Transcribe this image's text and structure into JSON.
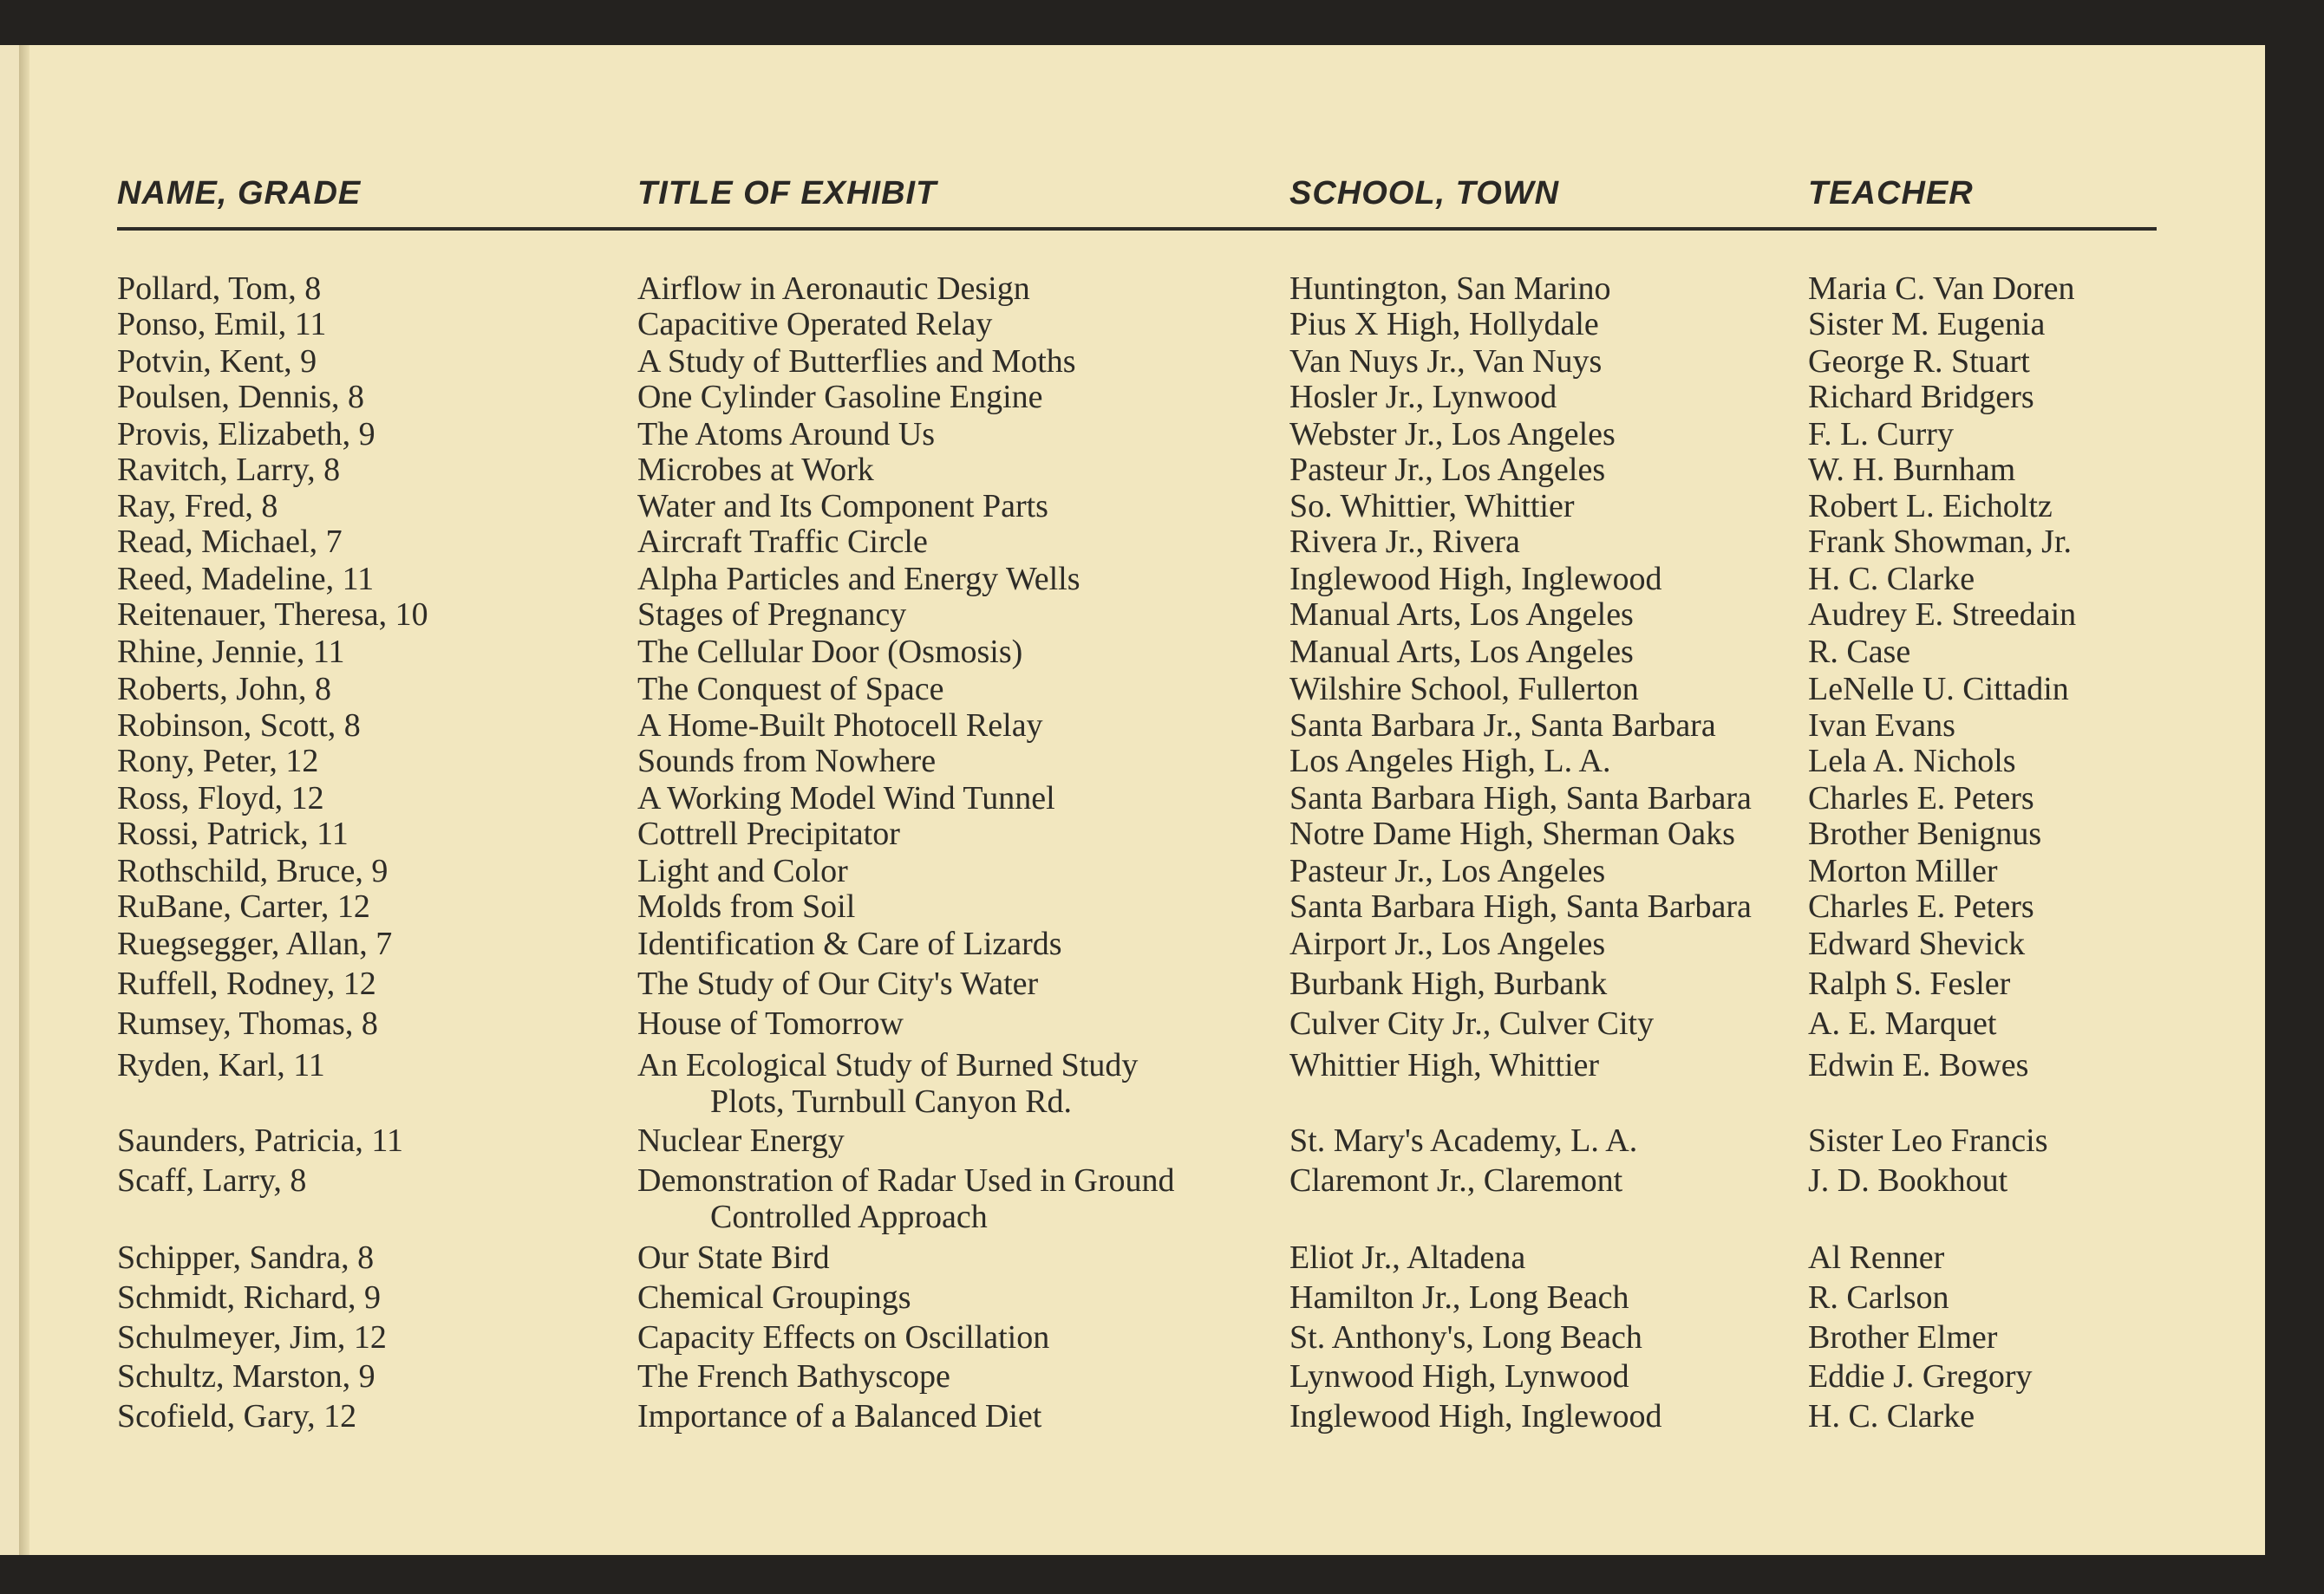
{
  "headers": {
    "name": "NAME, GRADE",
    "title": "TITLE OF EXHIBIT",
    "school": "SCHOOL, TOWN",
    "teacher": "TEACHER"
  },
  "rows": [
    {
      "name": "Pollard, Tom, 8",
      "title": "Airflow in Aeronautic Design",
      "school": "Huntington, San Marino",
      "teacher": "Maria C. Van Doren"
    },
    {
      "name": "Ponso, Emil, 11",
      "title": "Capacitive Operated Relay",
      "school": "Pius X High, Hollydale",
      "teacher": "Sister M. Eugenia"
    },
    {
      "name": "Potvin, Kent, 9",
      "title": "A Study of Butterflies and Moths",
      "school": "Van Nuys Jr., Van Nuys",
      "teacher": "George R. Stuart"
    },
    {
      "name": "Poulsen, Dennis, 8",
      "title": "One Cylinder Gasoline Engine",
      "school": "Hosler Jr., Lynwood",
      "teacher": "Richard Bridgers"
    },
    {
      "name": "Provis, Elizabeth, 9",
      "title": "The Atoms Around Us",
      "school": "Webster Jr., Los Angeles",
      "teacher": "F. L. Curry"
    },
    {
      "name": "Ravitch, Larry, 8",
      "title": "Microbes at Work",
      "school": "Pasteur Jr., Los Angeles",
      "teacher": "W. H. Burnham"
    },
    {
      "name": "Ray, Fred, 8",
      "title": "Water and Its Component Parts",
      "school": "So. Whittier, Whittier",
      "teacher": "Robert L. Eicholtz"
    },
    {
      "name": "Read, Michael, 7",
      "title": "Aircraft Traffic Circle",
      "school": "Rivera Jr., Rivera",
      "teacher": "Frank Showman, Jr."
    },
    {
      "name": "Reed, Madeline, 11",
      "title": "Alpha Particles and Energy Wells",
      "school": "Inglewood High, Inglewood",
      "teacher": "H. C. Clarke"
    },
    {
      "name": "Reitenauer, Theresa, 10",
      "title": "Stages of Pregnancy",
      "school": "Manual Arts, Los Angeles",
      "teacher": "Audrey E. Streedain"
    },
    {
      "name": "Rhine, Jennie, 11",
      "title": "The Cellular Door (Osmosis)",
      "school": "Manual Arts, Los Angeles",
      "teacher": "R. Case"
    },
    {
      "name": "Roberts, John, 8",
      "title": "The Conquest of Space",
      "school": "Wilshire School, Fullerton",
      "teacher": "LeNelle U. Cittadin"
    },
    {
      "name": "Robinson, Scott, 8",
      "title": "A Home-Built Photocell Relay",
      "school": "Santa Barbara Jr., Santa Barbara",
      "teacher": "Ivan Evans"
    },
    {
      "name": "Rony, Peter, 12",
      "title": "Sounds from Nowhere",
      "school": "Los Angeles High, L. A.",
      "teacher": "Lela A. Nichols"
    },
    {
      "name": "Ross, Floyd, 12",
      "title": "A Working Model Wind Tunnel",
      "school": "Santa Barbara High, Santa Barbara",
      "teacher": "Charles E. Peters"
    },
    {
      "name": "Rossi, Patrick, 11",
      "title": "Cottrell Precipitator",
      "school": "Notre Dame High, Sherman Oaks",
      "teacher": "Brother Benignus"
    },
    {
      "name": "Rothschild, Bruce, 9",
      "title": "Light and Color",
      "school": "Pasteur Jr., Los Angeles",
      "teacher": "Morton Miller"
    },
    {
      "name": "RuBane, Carter, 12",
      "title": "Molds from Soil",
      "school": "Santa Barbara High, Santa Barbara",
      "teacher": "Charles E. Peters"
    },
    {
      "name": "Ruegsegger, Allan, 7",
      "title": "Identification & Care of Lizards",
      "school": "Airport Jr., Los Angeles",
      "teacher": "Edward Shevick"
    },
    {
      "name": "Ruffell, Rodney, 12",
      "title": "The Study of Our City's Water",
      "school": "Burbank High, Burbank",
      "teacher": "Ralph S. Fesler"
    },
    {
      "name": "Rumsey, Thomas, 8",
      "title": "House of Tomorrow",
      "school": "Culver City Jr., Culver City",
      "teacher": "A. E. Marquet"
    },
    {
      "name": "Ryden, Karl, 11",
      "title": "An Ecological Study of Burned Study",
      "title2": "Plots, Turnbull Canyon Rd.",
      "school": "Whittier High, Whittier",
      "teacher": "Edwin E. Bowes"
    },
    {
      "name": "Saunders, Patricia, 11",
      "title": "Nuclear Energy",
      "school": "St. Mary's Academy, L. A.",
      "teacher": "Sister Leo Francis"
    },
    {
      "name": "Scaff, Larry, 8",
      "title": "Demonstration of Radar Used in Ground",
      "title2": "Controlled Approach",
      "school": "Claremont Jr., Claremont",
      "teacher": "J. D. Bookhout"
    },
    {
      "name": "Schipper, Sandra, 8",
      "title": "Our State Bird",
      "school": "Eliot Jr., Altadena",
      "teacher": "Al Renner"
    },
    {
      "name": "Schmidt, Richard, 9",
      "title": "Chemical Groupings",
      "school": "Hamilton Jr., Long Beach",
      "teacher": "R. Carlson"
    },
    {
      "name": "Schulmeyer, Jim, 12",
      "title": "Capacity Effects on Oscillation",
      "school": "St. Anthony's, Long Beach",
      "teacher": "Brother Elmer"
    },
    {
      "name": "Schultz, Marston, 9",
      "title": "The French Bathyscope",
      "school": "Lynwood High, Lynwood",
      "teacher": "Eddie J. Gregory"
    },
    {
      "name": "Scofield, Gary, 12",
      "title": "Importance of a Balanced Diet",
      "school": "Inglewood High, Inglewood",
      "teacher": "H. C. Clarke"
    }
  ]
}
